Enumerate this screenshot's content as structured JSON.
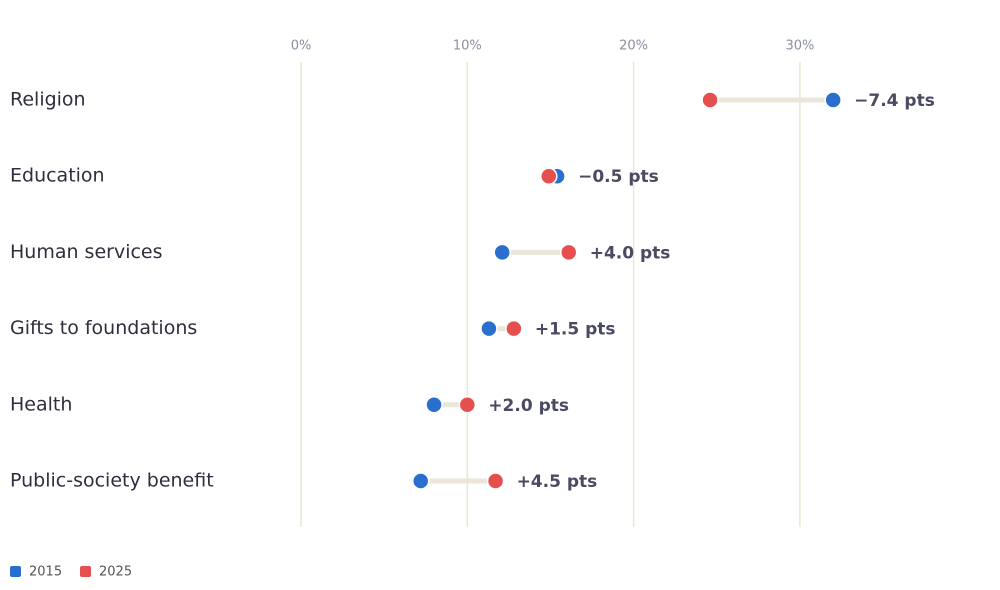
{
  "chart_data": {
    "type": "dumbbell",
    "categories": [
      "Religion",
      "Education",
      "Human services",
      "Gifts to foundations",
      "Health",
      "Public-society benefit"
    ],
    "series": [
      {
        "name": "2015",
        "color": "#2b6fce",
        "values": [
          32.0,
          15.4,
          12.1,
          11.3,
          8.0,
          7.2
        ]
      },
      {
        "name": "2025",
        "color": "#e5504f",
        "values": [
          24.6,
          14.9,
          16.1,
          12.8,
          10.0,
          11.7
        ]
      }
    ],
    "changes": {
      "values": [
        -7.4,
        -0.5,
        4.0,
        1.5,
        2.0,
        4.5
      ],
      "value_labels": [
        "−7.4 pts",
        "−0.5 pts",
        "+4.0 pts",
        "+1.5 pts",
        "+2.0 pts",
        "+4.5 pts"
      ]
    },
    "xlim": [
      0,
      40
    ],
    "xticks": [
      {
        "value": 0,
        "label": "0%"
      },
      {
        "value": 10,
        "label": "10%"
      },
      {
        "value": 20,
        "label": "20%"
      },
      {
        "value": 30,
        "label": "30%"
      }
    ],
    "grid": true,
    "legend": "bottom-left"
  }
}
